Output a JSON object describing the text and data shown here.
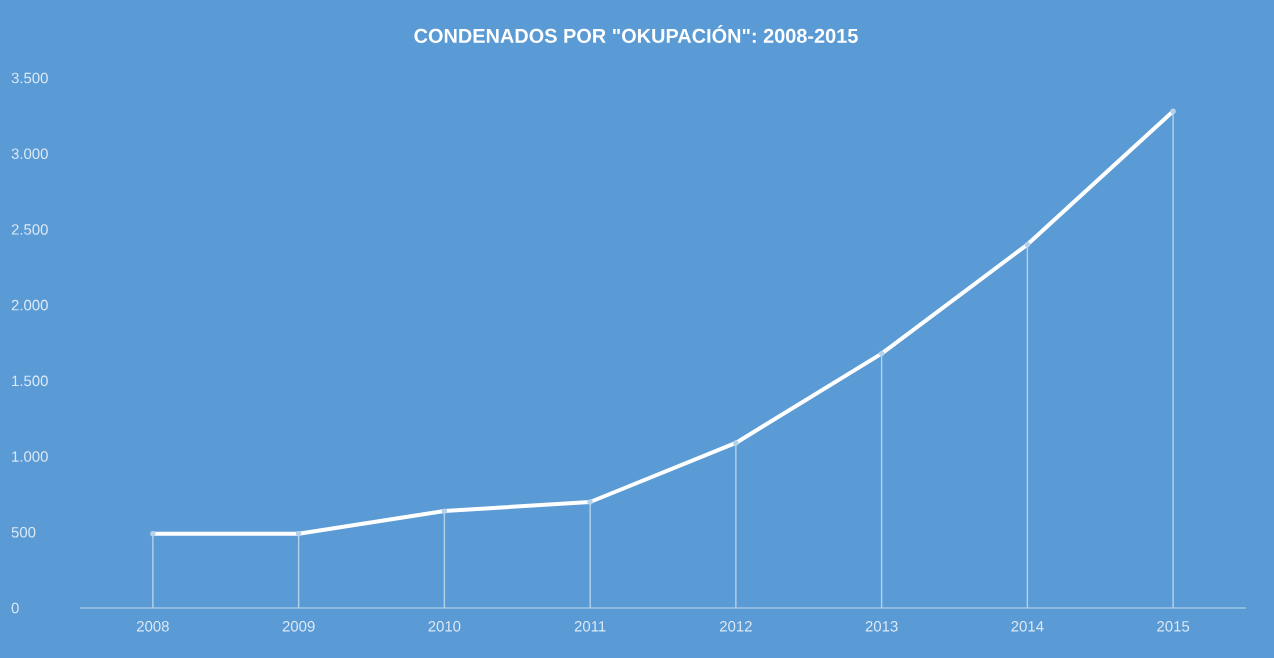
{
  "chart_data": {
    "type": "line",
    "title": "CONDENADOS POR \"OKUPACIÓN\": 2008-2015",
    "categories": [
      "2008",
      "2009",
      "2010",
      "2011",
      "2012",
      "2013",
      "2014",
      "2015"
    ],
    "series": [
      {
        "color": "#ffffff",
        "values": [
          490,
          490,
          640,
          700,
          1090,
          1680,
          2400,
          3280
        ]
      },
      {
        "type": "lollipop",
        "color": "#b5d2ec",
        "marker": "circle",
        "values": [
          490,
          490,
          640,
          700,
          1090,
          1680,
          2400,
          3280
        ]
      }
    ],
    "ylim": [
      0,
      3500
    ],
    "yticks": [
      0,
      500,
      {
        "value": 1000,
        "label": "1.000"
      },
      {
        "value": 1500,
        "label": "1.500"
      },
      {
        "value": 2000,
        "label": "2.000"
      },
      {
        "value": 2500,
        "label": "2.500"
      },
      {
        "value": 3000,
        "label": "3.000"
      },
      {
        "value": 3500,
        "label": "3.500"
      }
    ]
  }
}
